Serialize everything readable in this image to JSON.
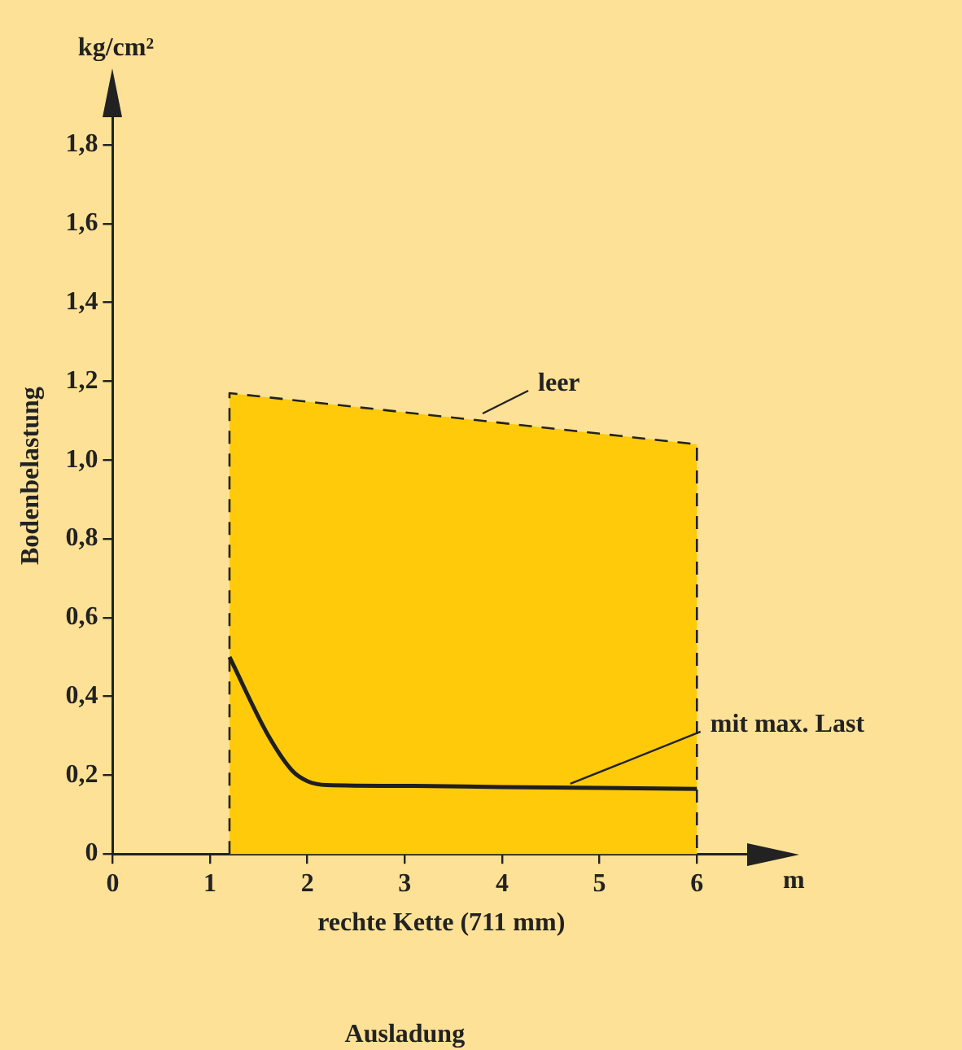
{
  "chart_data": {
    "type": "line",
    "xlabel": "rechte Kette (711 mm)",
    "ylabel": "Bodenbelastung",
    "xlim": [
      0,
      6.75
    ],
    "ylim": [
      0,
      1.92
    ],
    "xticks": [
      0,
      1,
      2,
      3,
      4,
      5,
      6
    ],
    "yticks": [
      0,
      {
        "value": 0.2,
        "label": "0,2"
      },
      {
        "value": 0.4,
        "label": "0,4"
      },
      {
        "value": 0.6,
        "label": "0,6"
      },
      {
        "value": 0.8,
        "label": "0,8"
      },
      {
        "value": 1.0,
        "label": "1,0"
      },
      {
        "value": 1.2,
        "label": "1,2"
      },
      {
        "value": 1.4,
        "label": "1,4"
      },
      {
        "value": 1.6,
        "label": "1,6"
      },
      {
        "value": 1.8,
        "label": "1,8"
      }
    ],
    "grid": false,
    "legend": false,
    "series": [
      {
        "type": "area",
        "line_style": "dashed",
        "color": "#ffca0a",
        "x": [
          1.2,
          6
        ],
        "values": [
          1.17,
          1.04
        ]
      },
      {
        "type": "line",
        "line_style": "solid",
        "color": "#1f1f1f",
        "x": [
          1.2,
          1.6,
          1.85,
          2.0,
          2.2,
          3,
          4,
          5,
          6
        ],
        "values": [
          0.5,
          0.3,
          0.21,
          0.185,
          0.175,
          0.173,
          0.17,
          0.168,
          0.165
        ]
      }
    ],
    "annotations": [
      "kg/cm²",
      "m",
      "Ausladung",
      {
        "text": "leer",
        "x": 3.8,
        "y": 1.11
      },
      {
        "text": "mit max. Last",
        "x": 4.7,
        "y": 0.17
      }
    ]
  }
}
